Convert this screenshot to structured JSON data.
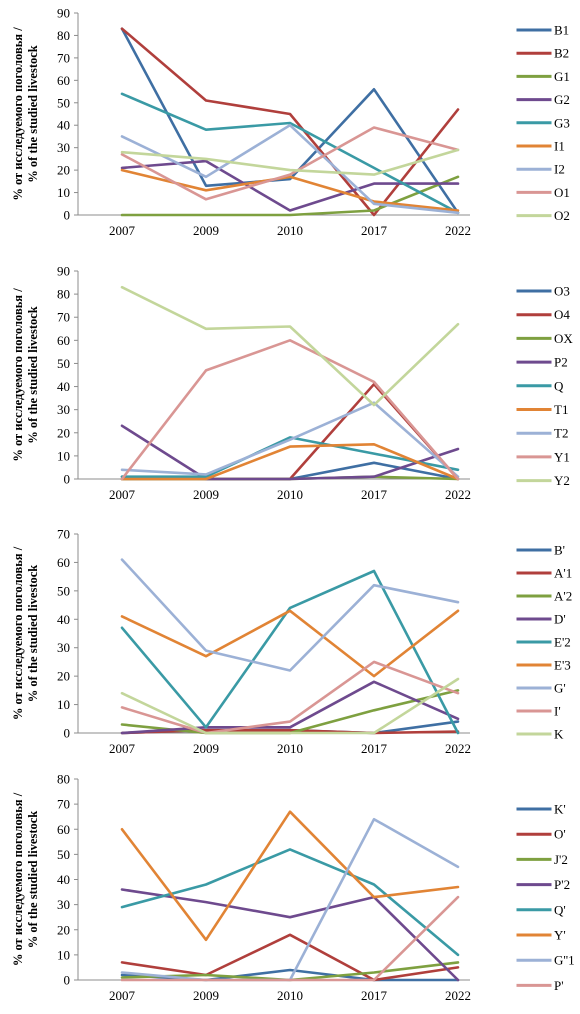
{
  "chart_data": [
    {
      "type": "line",
      "ylabel_lines": [
        "% от исследуемого поголовья /",
        "% of the studied livestock"
      ],
      "categories": [
        "2007",
        "2009",
        "2010",
        "2017",
        "2022"
      ],
      "ylim": [
        0,
        90
      ],
      "yticks": [
        0,
        10,
        20,
        30,
        40,
        50,
        60,
        70,
        80,
        90
      ],
      "grid": false,
      "legend_position": "right",
      "series": [
        {
          "name": "B1",
          "color": "#3f6fa3",
          "values": [
            83,
            13,
            16,
            56,
            1
          ]
        },
        {
          "name": "B2",
          "color": "#b03f3c",
          "values": [
            83,
            51,
            45,
            0,
            47
          ]
        },
        {
          "name": "G1",
          "color": "#7ea040",
          "values": [
            0,
            0,
            0,
            2,
            17
          ]
        },
        {
          "name": "G2",
          "color": "#6e4a8e",
          "values": [
            21,
            24,
            2,
            14,
            14
          ]
        },
        {
          "name": "G3",
          "color": "#3a9aa5",
          "values": [
            54,
            38,
            41,
            21,
            1
          ]
        },
        {
          "name": "I1",
          "color": "#e18435",
          "values": [
            20,
            11,
            17,
            6,
            2
          ]
        },
        {
          "name": "I2",
          "color": "#9cb1d6",
          "values": [
            35,
            17,
            40,
            5,
            1
          ]
        },
        {
          "name": "O1",
          "color": "#d99694",
          "values": [
            27,
            7,
            18,
            39,
            29
          ]
        },
        {
          "name": "O2",
          "color": "#c3d69b",
          "values": [
            28,
            25,
            20,
            18,
            29
          ]
        }
      ]
    },
    {
      "type": "line",
      "ylabel_lines": [
        "% от исследуемого поголовья /",
        "% of the studied livestock"
      ],
      "categories": [
        "2007",
        "2009",
        "2010",
        "2017",
        "2022"
      ],
      "ylim": [
        0,
        90
      ],
      "yticks": [
        0,
        10,
        20,
        30,
        40,
        50,
        60,
        70,
        80,
        90
      ],
      "grid": false,
      "legend_position": "right",
      "series": [
        {
          "name": "O3",
          "color": "#3f6fa3",
          "values": [
            1,
            0,
            0,
            7,
            0
          ]
        },
        {
          "name": "O4",
          "color": "#b03f3c",
          "values": [
            0,
            0,
            0,
            41,
            0
          ]
        },
        {
          "name": "OX",
          "color": "#7ea040",
          "values": [
            0,
            0,
            0,
            1,
            0
          ]
        },
        {
          "name": "P2",
          "color": "#6e4a8e",
          "values": [
            23,
            0,
            0,
            1,
            13
          ]
        },
        {
          "name": "Q",
          "color": "#3a9aa5",
          "values": [
            1,
            1,
            18,
            11,
            4
          ]
        },
        {
          "name": "T1",
          "color": "#e18435",
          "values": [
            0,
            0,
            14,
            15,
            0
          ]
        },
        {
          "name": "T2",
          "color": "#9cb1d6",
          "values": [
            4,
            2,
            17,
            33,
            1
          ]
        },
        {
          "name": "Y1",
          "color": "#d99694",
          "values": [
            0,
            47,
            60,
            42,
            0
          ]
        },
        {
          "name": "Y2",
          "color": "#c3d69b",
          "values": [
            83,
            65,
            66,
            32,
            67
          ]
        }
      ]
    },
    {
      "type": "line",
      "ylabel_lines": [
        "% от исследуемого поголовья /",
        "% of the studied livestock"
      ],
      "categories": [
        "2007",
        "2009",
        "2010",
        "2017",
        "2022"
      ],
      "ylim": [
        0,
        70
      ],
      "yticks": [
        0,
        10,
        20,
        30,
        40,
        50,
        60,
        70
      ],
      "grid": false,
      "legend_position": "right",
      "series": [
        {
          "name": "B'",
          "color": "#3f6fa3",
          "values": [
            0,
            1,
            1,
            0,
            4
          ]
        },
        {
          "name": "A'1",
          "color": "#b03f3c",
          "values": [
            0,
            1,
            1,
            0,
            0.5
          ]
        },
        {
          "name": "A'2",
          "color": "#7ea040",
          "values": [
            3,
            0,
            0,
            8,
            15
          ]
        },
        {
          "name": "D'",
          "color": "#6e4a8e",
          "values": [
            0,
            2,
            2,
            18,
            5
          ]
        },
        {
          "name": "E'2",
          "color": "#3a9aa5",
          "values": [
            37,
            2,
            44,
            57,
            0
          ]
        },
        {
          "name": "E'3",
          "color": "#e18435",
          "values": [
            41,
            27,
            43,
            20,
            43
          ]
        },
        {
          "name": "G'",
          "color": "#9cb1d6",
          "values": [
            61,
            29,
            22,
            52,
            46
          ]
        },
        {
          "name": "I'",
          "color": "#d99694",
          "values": [
            9,
            0,
            4,
            25,
            14
          ]
        },
        {
          "name": "K",
          "color": "#c3d69b",
          "values": [
            14,
            0,
            0,
            0,
            19
          ]
        }
      ]
    },
    {
      "type": "line",
      "ylabel_lines": [
        "% от исследуемого поголовья /",
        "% of the studied livestock"
      ],
      "categories": [
        "2007",
        "2009",
        "2010",
        "2017",
        "2022"
      ],
      "ylim": [
        0,
        80
      ],
      "yticks": [
        0,
        10,
        20,
        30,
        40,
        50,
        60,
        70,
        80
      ],
      "grid": false,
      "legend_position": "right",
      "series": [
        {
          "name": "K'",
          "color": "#3f6fa3",
          "values": [
            2,
            0,
            4,
            0,
            0
          ]
        },
        {
          "name": "O'",
          "color": "#b03f3c",
          "values": [
            7,
            2,
            18,
            0,
            5
          ]
        },
        {
          "name": "J'2",
          "color": "#7ea040",
          "values": [
            1,
            2,
            0,
            3,
            7
          ]
        },
        {
          "name": "P'2",
          "color": "#6e4a8e",
          "values": [
            36,
            31,
            25,
            33,
            0
          ]
        },
        {
          "name": "Q'",
          "color": "#3a9aa5",
          "values": [
            29,
            38,
            52,
            38,
            10
          ]
        },
        {
          "name": "Y'",
          "color": "#e18435",
          "values": [
            60,
            16,
            67,
            33,
            37
          ]
        },
        {
          "name": "G''1",
          "color": "#9cb1d6",
          "values": [
            3,
            0,
            0,
            64,
            45
          ]
        },
        {
          "name": "P'",
          "color": "#d99694",
          "values": [
            0,
            0,
            0,
            0,
            33
          ]
        }
      ]
    }
  ]
}
